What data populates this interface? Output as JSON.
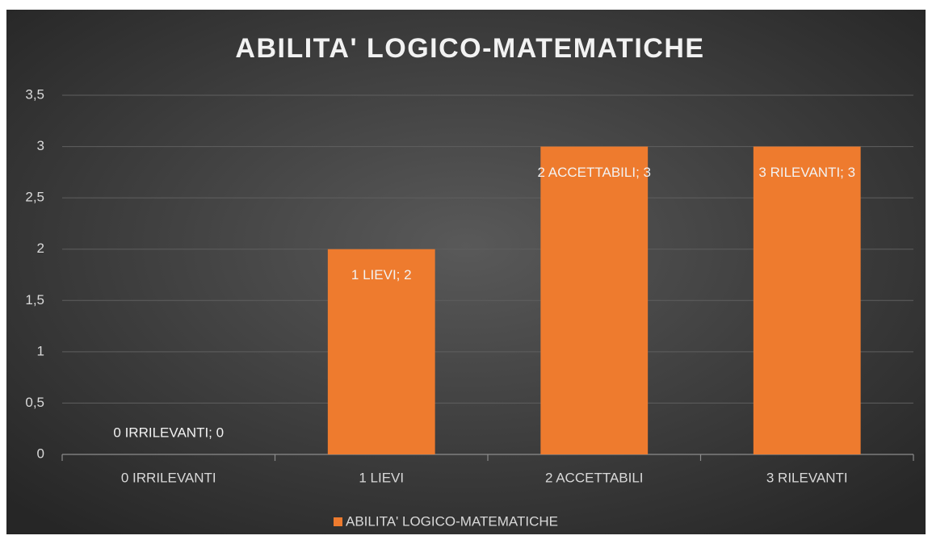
{
  "chart_data": {
    "type": "bar",
    "title": "ABILITA' LOGICO-MATEMATICHE",
    "categories": [
      "0 IRRILEVANTI",
      "1 LIEVI",
      "2 ACCETTABILI",
      "3 RILEVANTI"
    ],
    "series": [
      {
        "name": "ABILITA' LOGICO-MATEMATICHE",
        "color": "#ee7b2e",
        "values": [
          0,
          2,
          3,
          3
        ],
        "value_labels": [
          "0 IRRILEVANTI; 0",
          "1 LIEVI; 2",
          "2 ACCETTABILI; 3",
          "3 RILEVANTI; 3"
        ]
      }
    ],
    "ylim": [
      0,
      3.5
    ],
    "yticks": [
      0,
      {
        "value": 0.5,
        "label": "0,5"
      },
      1,
      {
        "value": 1.5,
        "label": "1,5"
      },
      2,
      {
        "value": 2.5,
        "label": "2,5"
      },
      3,
      {
        "value": 3.5,
        "label": "3,5"
      }
    ],
    "grid": true,
    "legend": "bottom"
  }
}
